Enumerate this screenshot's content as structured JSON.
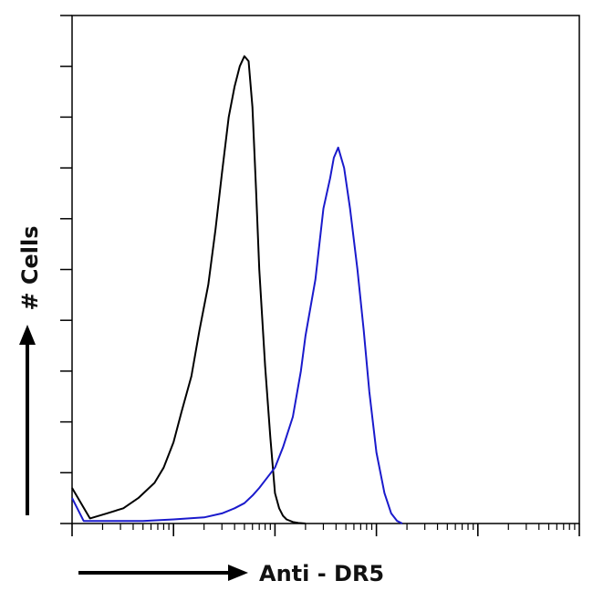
{
  "chart_data": {
    "type": "line",
    "title": "",
    "xlabel": "Anti - DR5",
    "ylabel": "# Cells",
    "x_scale": "log",
    "xlim": [
      1,
      100000
    ],
    "ylim": [
      0,
      100
    ],
    "grid": false,
    "legend": "none",
    "series": [
      {
        "color": "#000000",
        "x": [
          1,
          1.5,
          2.2,
          3.2,
          4.5,
          6.5,
          8,
          10,
          12,
          15,
          18,
          22,
          26,
          30,
          35,
          40,
          45,
          50,
          55,
          60,
          65,
          70,
          80,
          90,
          100,
          110,
          120,
          130,
          150,
          170,
          200
        ],
        "y": [
          7,
          1,
          2,
          3,
          5,
          8,
          11,
          16,
          22,
          29,
          38,
          47,
          58,
          69,
          80,
          86,
          90,
          92,
          91,
          82,
          66,
          50,
          31,
          17,
          6,
          3,
          1.5,
          0.8,
          0.3,
          0.1,
          0
        ]
      },
      {
        "color": "#1a1acc",
        "x": [
          1,
          1.3,
          2,
          5,
          10,
          20,
          30,
          40,
          50,
          60,
          70,
          80,
          100,
          120,
          150,
          180,
          200,
          250,
          300,
          350,
          380,
          420,
          480,
          550,
          650,
          750,
          850,
          1000,
          1200,
          1400,
          1600,
          1800
        ],
        "y": [
          5,
          0.5,
          0.5,
          0.5,
          0.8,
          1.2,
          2,
          3,
          4,
          5.5,
          7,
          8.5,
          11,
          15,
          21,
          30,
          37,
          48,
          62,
          68,
          72,
          74,
          70,
          62,
          50,
          38,
          26,
          14,
          6,
          2,
          0.5,
          0
        ]
      }
    ]
  }
}
